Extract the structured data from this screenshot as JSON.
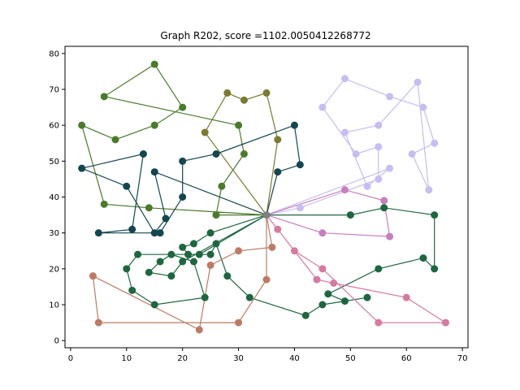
{
  "chart_data": {
    "type": "line",
    "title": "Graph R202, score =1102.0050412268772",
    "xlim": [
      -1,
      71
    ],
    "ylim": [
      -2,
      82
    ],
    "xticks": [
      0,
      10,
      20,
      30,
      40,
      50,
      60,
      70
    ],
    "yticks": [
      0,
      10,
      20,
      30,
      40,
      50,
      60,
      70,
      80
    ],
    "grid": false,
    "depot": {
      "x": 35,
      "y": 35,
      "color": "#808080"
    },
    "series": [
      {
        "color": "#4b7a2e",
        "points": [
          [
            35,
            35
          ],
          [
            14,
            37
          ],
          [
            6,
            38
          ],
          [
            2,
            60
          ],
          [
            8,
            56
          ],
          [
            15,
            60
          ],
          [
            20,
            65
          ],
          [
            15,
            77
          ],
          [
            6,
            68
          ],
          [
            30,
            60
          ],
          [
            31,
            52
          ],
          [
            27,
            43
          ],
          [
            26,
            35
          ],
          [
            35,
            35
          ]
        ]
      },
      {
        "color": "#7a7a33",
        "points": [
          [
            35,
            35
          ],
          [
            24,
            58
          ],
          [
            28,
            69
          ],
          [
            31,
            67
          ],
          [
            35,
            69
          ],
          [
            37,
            56
          ],
          [
            35,
            35
          ]
        ]
      },
      {
        "color": "#15464e",
        "points": [
          [
            35,
            35
          ],
          [
            37,
            47
          ],
          [
            41,
            49
          ],
          [
            40,
            60
          ],
          [
            26,
            52
          ],
          [
            20,
            50
          ],
          [
            20,
            40
          ],
          [
            16,
            30
          ],
          [
            5,
            30
          ],
          [
            11,
            31
          ],
          [
            13,
            52
          ],
          [
            2,
            48
          ],
          [
            10,
            43
          ],
          [
            15,
            30
          ],
          [
            17,
            34
          ],
          [
            15,
            47
          ],
          [
            35,
            35
          ]
        ]
      },
      {
        "color": "#c8bdf0",
        "points": [
          [
            35,
            35
          ],
          [
            41,
            37
          ],
          [
            55,
            45
          ],
          [
            55,
            54
          ],
          [
            51,
            52
          ],
          [
            45,
            65
          ],
          [
            49,
            73
          ],
          [
            57,
            68
          ],
          [
            63,
            65
          ],
          [
            65,
            55
          ],
          [
            61,
            52
          ],
          [
            64,
            42
          ],
          [
            62,
            72
          ],
          [
            55,
            60
          ],
          [
            49,
            58
          ],
          [
            53,
            43
          ],
          [
            57,
            48
          ],
          [
            35,
            35
          ]
        ]
      },
      {
        "color": "#c67fbf",
        "points": [
          [
            35,
            35
          ],
          [
            49,
            42
          ],
          [
            56,
            39
          ],
          [
            57,
            29
          ],
          [
            45,
            30
          ],
          [
            35,
            35
          ]
        ]
      },
      {
        "color": "#1e6640",
        "points": [
          [
            35,
            35
          ],
          [
            50,
            35
          ],
          [
            56,
            37
          ],
          [
            65,
            35
          ],
          [
            65,
            20
          ],
          [
            63,
            23
          ],
          [
            55,
            20
          ],
          [
            46,
            13
          ],
          [
            49,
            11
          ],
          [
            53,
            12
          ],
          [
            45,
            10
          ],
          [
            42,
            7
          ],
          [
            32,
            12
          ],
          [
            28,
            18
          ],
          [
            26,
            27
          ],
          [
            25,
            24
          ],
          [
            21,
            24
          ],
          [
            20,
            26
          ],
          [
            22,
            27
          ],
          [
            25,
            30
          ],
          [
            35,
            35
          ]
        ]
      },
      {
        "color": "#1e6640",
        "points": [
          [
            35,
            35
          ],
          [
            20,
            22
          ],
          [
            18,
            18
          ],
          [
            14,
            19
          ],
          [
            16,
            22
          ],
          [
            18,
            24
          ],
          [
            22,
            22
          ],
          [
            24,
            12
          ],
          [
            15,
            10
          ],
          [
            11,
            14
          ],
          [
            10,
            20
          ],
          [
            12,
            24
          ],
          [
            23,
            24
          ],
          [
            35,
            35
          ]
        ]
      },
      {
        "color": "#d57aa0",
        "points": [
          [
            35,
            35
          ],
          [
            37,
            31
          ],
          [
            40,
            25
          ],
          [
            45,
            20
          ],
          [
            55,
            5
          ],
          [
            67,
            5
          ],
          [
            60,
            12
          ],
          [
            47,
            16
          ],
          [
            44,
            17
          ],
          [
            35,
            35
          ]
        ]
      },
      {
        "color": "#bb7b67",
        "points": [
          [
            35,
            35
          ],
          [
            35,
            17
          ],
          [
            30,
            5
          ],
          [
            5,
            5
          ],
          [
            4,
            18
          ],
          [
            23,
            3
          ],
          [
            25,
            21
          ],
          [
            30,
            25
          ],
          [
            36,
            26
          ],
          [
            35,
            35
          ]
        ]
      }
    ]
  }
}
